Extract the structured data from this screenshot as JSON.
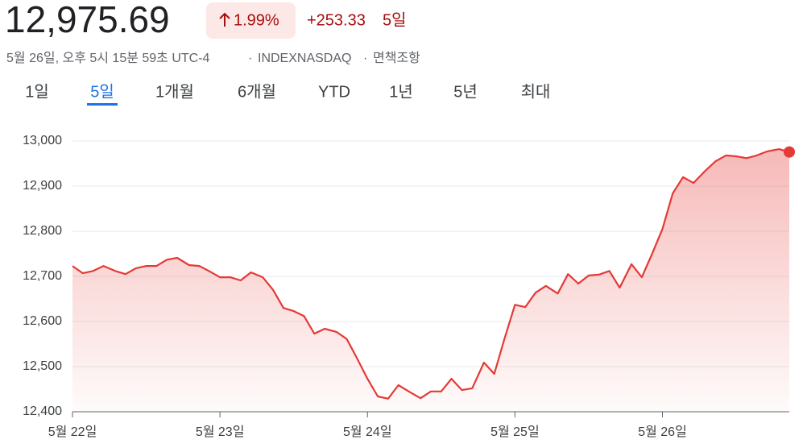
{
  "header": {
    "price": "12,975.69",
    "percent_change": "1.99%",
    "change": "+253.33",
    "period": "5일",
    "timestamp": "5월 26일, 오후 5시 15분 59초 UTC-4",
    "exchange": "INDEXNASDAQ",
    "disclaimer": "면책조항"
  },
  "tabs": [
    "1일",
    "5일",
    "1개월",
    "6개월",
    "YTD",
    "1년",
    "5년",
    "최대"
  ],
  "active_tab": 1,
  "chart_data": {
    "type": "area",
    "color": "#e53935",
    "x": [
      0,
      0.07,
      0.14,
      0.21,
      0.29,
      0.36,
      0.43,
      0.5,
      0.57,
      0.64,
      0.71,
      0.79,
      0.86,
      0.93,
      1,
      1.07,
      1.14,
      1.21,
      1.29,
      1.36,
      1.43,
      1.5,
      1.57,
      1.64,
      1.71,
      1.79,
      1.86,
      1.93,
      2,
      2.07,
      2.14,
      2.21,
      2.29,
      2.36,
      2.43,
      2.5,
      2.57,
      2.64,
      2.71,
      2.79,
      2.86,
      2.93,
      3,
      3.07,
      3.14,
      3.21,
      3.29,
      3.36,
      3.43,
      3.5,
      3.57,
      3.64,
      3.71,
      3.79,
      3.86,
      3.93,
      4,
      4.07,
      4.14,
      4.21,
      4.29,
      4.36,
      4.43,
      4.5,
      4.57,
      4.64,
      4.71,
      4.79,
      4.86
    ],
    "values": [
      12723,
      12707,
      12712,
      12723,
      12712,
      12705,
      12718,
      12723,
      12723,
      12737,
      12741,
      12725,
      12723,
      12711,
      12698,
      12698,
      12691,
      12709,
      12698,
      12670,
      12630,
      12623,
      12612,
      12573,
      12584,
      12577,
      12561,
      12518,
      12473,
      12434,
      12429,
      12459,
      12443,
      12430,
      12445,
      12445,
      12473,
      12448,
      12452,
      12509,
      12484,
      12563,
      12637,
      12632,
      12664,
      12679,
      12662,
      12705,
      12684,
      12702,
      12704,
      12712,
      12675,
      12727,
      12698,
      12750,
      12805,
      12884,
      12920,
      12907,
      12934,
      12955,
      12968,
      12966,
      12962,
      12968,
      12977,
      12982,
      12975.69
    ],
    "xlim": [
      0,
      4.86
    ],
    "xticks": [
      {
        "value": 0,
        "label": "5월 22일"
      },
      {
        "value": 1,
        "label": "5월 23일"
      },
      {
        "value": 2,
        "label": "5월 24일"
      },
      {
        "value": 3,
        "label": "5월 25일"
      },
      {
        "value": 4,
        "label": "5월 26일"
      }
    ],
    "ylim": [
      12400,
      13000
    ],
    "yticks": [
      {
        "value": 12400,
        "label": "12,400"
      },
      {
        "value": 12500,
        "label": "12,500"
      },
      {
        "value": 12600,
        "label": "12,600"
      },
      {
        "value": 12700,
        "label": "12,700"
      },
      {
        "value": 12800,
        "label": "12,800"
      },
      {
        "value": 12900,
        "label": "12,900"
      },
      {
        "value": 13000,
        "label": "13,000"
      }
    ],
    "grid": true
  }
}
